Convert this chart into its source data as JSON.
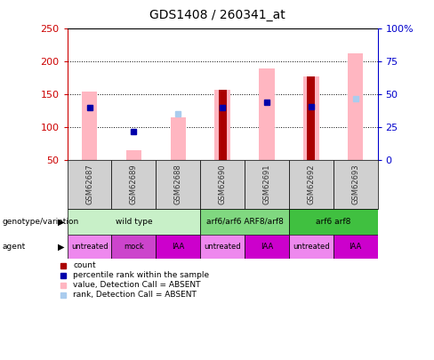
{
  "title": "GDS1408 / 260341_at",
  "samples": [
    "GSM62687",
    "GSM62689",
    "GSM62688",
    "GSM62690",
    "GSM62691",
    "GSM62692",
    "GSM62693"
  ],
  "ylim_left": [
    50,
    250
  ],
  "ylim_right": [
    0,
    100
  ],
  "yticks_left": [
    50,
    100,
    150,
    200,
    250
  ],
  "yticks_right": [
    0,
    25,
    50,
    75,
    100
  ],
  "ytick_labels_right": [
    "0",
    "25",
    "50",
    "75",
    "100%"
  ],
  "pink_bars": [
    155,
    65,
    115,
    157,
    190,
    178,
    213
  ],
  "pink_bar_base": 50,
  "red_bars": [
    null,
    null,
    null,
    157,
    null,
    178,
    null
  ],
  "red_bar_base": 50,
  "blue_squares_value": [
    130,
    94,
    null,
    130,
    138,
    132,
    null
  ],
  "lightblue_squares_value": [
    null,
    null,
    120,
    null,
    null,
    null,
    144
  ],
  "genotype_groups": [
    {
      "label": "wild type",
      "start": 0,
      "end": 3,
      "color": "#c8f0c8"
    },
    {
      "label": "arf6/arf6 ARF8/arf8",
      "start": 3,
      "end": 5,
      "color": "#80d880"
    },
    {
      "label": "arf6 arf8",
      "start": 5,
      "end": 7,
      "color": "#40c040"
    }
  ],
  "agent_groups": [
    {
      "label": "untreated",
      "start": 0,
      "end": 1,
      "color": "#ee88ee"
    },
    {
      "label": "mock",
      "start": 1,
      "end": 2,
      "color": "#cc44cc"
    },
    {
      "label": "IAA",
      "start": 2,
      "end": 3,
      "color": "#cc00cc"
    },
    {
      "label": "untreated",
      "start": 3,
      "end": 4,
      "color": "#ee88ee"
    },
    {
      "label": "IAA",
      "start": 4,
      "end": 5,
      "color": "#cc00cc"
    },
    {
      "label": "untreated",
      "start": 5,
      "end": 6,
      "color": "#ee88ee"
    },
    {
      "label": "IAA",
      "start": 6,
      "end": 7,
      "color": "#cc00cc"
    }
  ],
  "legend_items": [
    {
      "label": "count",
      "color": "#aa0000"
    },
    {
      "label": "percentile rank within the sample",
      "color": "#0000aa"
    },
    {
      "label": "value, Detection Call = ABSENT",
      "color": "#ffb6c1"
    },
    {
      "label": "rank, Detection Call = ABSENT",
      "color": "#aaccee"
    }
  ],
  "left_label_color": "#cc0000",
  "right_label_color": "#0000cc",
  "pink_bar_width": 0.35,
  "red_bar_width": 0.18
}
